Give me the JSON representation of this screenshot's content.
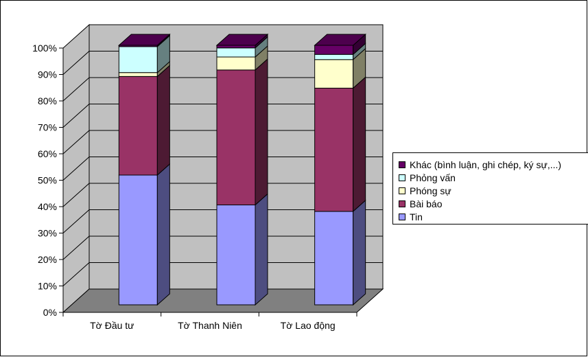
{
  "chart_data": {
    "type": "bar",
    "stacked": true,
    "percent_stacked": true,
    "three_d": true,
    "title": "",
    "xlabel": "",
    "ylabel": "",
    "categories": [
      "Tờ Đầu tư",
      "Tờ Thanh Niên",
      "Tờ Lao động"
    ],
    "y_ticks": [
      "0%",
      "10%",
      "20%",
      "30%",
      "40%",
      "50%",
      "60%",
      "70%",
      "80%",
      "90%",
      "100%"
    ],
    "ylim": [
      0,
      100
    ],
    "grid": true,
    "legend_position": "right",
    "series": [
      {
        "name": "Tin",
        "color": "#9999ff",
        "values": [
          50,
          38.5,
          36
        ]
      },
      {
        "name": "Bài báo",
        "color": "#993366",
        "values": [
          38,
          52,
          47.5
        ]
      },
      {
        "name": "Phóng sự",
        "color": "#ffffcc",
        "values": [
          1.5,
          5,
          11
        ]
      },
      {
        "name": "Phỏng vấn",
        "color": "#ccffff",
        "values": [
          10,
          3.5,
          2
        ]
      },
      {
        "name": "Khác (bình luận, ghi chép, ký sự,...)",
        "color": "#660066",
        "values": [
          0.5,
          1,
          3.5
        ]
      }
    ],
    "wall_color": "#c0c0c0",
    "floor_color": "#808080"
  }
}
